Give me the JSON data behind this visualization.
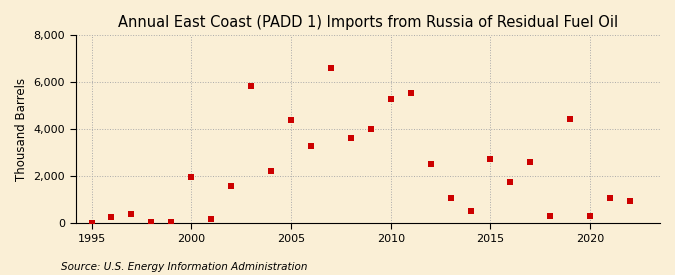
{
  "title": "Annual East Coast (PADD 1) Imports from Russia of Residual Fuel Oil",
  "ylabel": "Thousand Barrels",
  "source": "Source: U.S. Energy Information Administration",
  "years": [
    1995,
    1996,
    1997,
    1998,
    1999,
    2000,
    2001,
    2002,
    2003,
    2004,
    2005,
    2006,
    2007,
    2008,
    2009,
    2010,
    2011,
    2012,
    2013,
    2014,
    2015,
    2016,
    2017,
    2018,
    2019,
    2020,
    2021,
    2022
  ],
  "values": [
    0,
    250,
    380,
    50,
    50,
    1980,
    175,
    1560,
    5820,
    2230,
    4380,
    3280,
    6620,
    3620,
    3990,
    5290,
    5530,
    2530,
    1060,
    530,
    2750,
    1730,
    2590,
    310,
    4420,
    310,
    1090,
    920
  ],
  "marker_color": "#cc0000",
  "marker_size": 4,
  "background_color": "#faefd6",
  "plot_bg_color": "#faefd6",
  "grid_color": "#aaaaaa",
  "ylim": [
    0,
    8000
  ],
  "yticks": [
    0,
    2000,
    4000,
    6000,
    8000
  ],
  "xlim": [
    1994.2,
    2023.5
  ],
  "xticks": [
    1995,
    2000,
    2005,
    2010,
    2015,
    2020
  ],
  "title_fontsize": 10.5,
  "label_fontsize": 8.5,
  "tick_fontsize": 8,
  "source_fontsize": 7.5
}
